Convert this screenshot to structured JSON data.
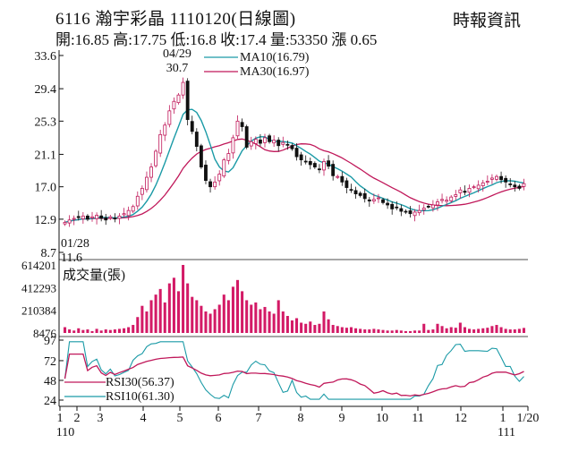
{
  "header": {
    "title": "6116  瀚宇彩晶 1110120(日線圖)",
    "source": "時報資訊",
    "stats": "開:16.85 高:17.75 低:16.8 收:17.4 量:53350 漲 0.65"
  },
  "chart_data": [
    {
      "type": "candlestick",
      "name": "price-panel",
      "y_ticks": [
        "33.6",
        "29.4",
        "25.3",
        "21.1",
        "17.0",
        "12.9",
        "8.7"
      ],
      "ylim": [
        8.7,
        33.6
      ],
      "legend": [
        {
          "label": "MA10(16.79)",
          "color": "#1a9aa6"
        },
        {
          "label": "MA30(16.97)",
          "color": "#c0185a"
        }
      ],
      "annotations": {
        "high_date": "04/29",
        "high_value": "30.7",
        "low_date": "01/28",
        "low_value": "11.6"
      },
      "close_path_approx": [
        12.5,
        12.8,
        13.0,
        13.1,
        13.3,
        12.9,
        13.2,
        13.4,
        13.0,
        12.8,
        13.2,
        13.0,
        13.3,
        13.6,
        14.0,
        14.5,
        15.8,
        16.8,
        18.2,
        19.5,
        21.5,
        23.6,
        24.8,
        26.6,
        27.8,
        28.6,
        30.2,
        25.5,
        24.0,
        22.1,
        19.5,
        17.8,
        17.0,
        17.6,
        18.6,
        20.4,
        21.2,
        23.2,
        25.3,
        24.6,
        22.0,
        22.7,
        23.0,
        22.5,
        23.2,
        22.7,
        22.9,
        22.2,
        22.6,
        22.3,
        21.8,
        20.8,
        20.4,
        20.2,
        19.8,
        19.5,
        19.2,
        20.2,
        19.6,
        18.4,
        18.3,
        17.6,
        16.9,
        16.6,
        16.1,
        15.9,
        15.5,
        15.2,
        15.4,
        15.6,
        15.0,
        14.7,
        14.2,
        14.4,
        13.9,
        13.8,
        13.6,
        13.8,
        14.0,
        14.3,
        14.5,
        14.7,
        15.1,
        15.4,
        15.3,
        15.7,
        16.0,
        16.6,
        16.3,
        16.8,
        17.0,
        17.2,
        17.5,
        17.7,
        18.1,
        18.3,
        17.9,
        17.6,
        17.3,
        17.0,
        16.8,
        17.4
      ]
    },
    {
      "type": "bar",
      "name": "volume-panel",
      "title": "成交量(張)",
      "y_ticks": [
        "614201",
        "412293",
        "210384",
        "8476"
      ],
      "ylim": [
        8476,
        614201
      ],
      "values_approx": [
        60000,
        40000,
        30000,
        50000,
        35000,
        40000,
        25000,
        45000,
        30000,
        40000,
        35000,
        40000,
        45000,
        50000,
        60000,
        80000,
        150000,
        250000,
        200000,
        300000,
        350000,
        400000,
        280000,
        450000,
        500000,
        380000,
        614201,
        450000,
        330000,
        300000,
        250000,
        200000,
        180000,
        220000,
        260000,
        350000,
        300000,
        420000,
        480000,
        380000,
        300000,
        260000,
        280000,
        220000,
        240000,
        200000,
        180000,
        300000,
        200000,
        160000,
        120000,
        140000,
        100000,
        90000,
        110000,
        80000,
        90000,
        200000,
        130000,
        80000,
        70000,
        60000,
        55000,
        60000,
        50000,
        45000,
        40000,
        40000,
        45000,
        40000,
        35000,
        30000,
        30000,
        35000,
        30000,
        25000,
        25000,
        30000,
        30000,
        90000,
        35000,
        40000,
        90000,
        70000,
        50000,
        60000,
        55000,
        100000,
        60000,
        45000,
        40000,
        45000,
        50000,
        55000,
        70000,
        80000,
        60000,
        45000,
        40000,
        40000,
        45000,
        53350
      ]
    },
    {
      "type": "line",
      "name": "rsi-panel",
      "y_ticks": [
        "97",
        "72",
        "48",
        "24"
      ],
      "ylim": [
        24,
        97
      ],
      "legend": [
        {
          "label": "RSI30(56.37)",
          "color": "#c0185a"
        },
        {
          "label": "RSI10(61.30)",
          "color": "#1a9aa6"
        }
      ]
    }
  ],
  "x_axis": {
    "tick_labels": [
      "1",
      "2",
      "3",
      "4",
      "5",
      "6",
      "7",
      "8",
      "9",
      "10",
      "11",
      "12",
      "1",
      "1/20"
    ],
    "year_labels": [
      "110",
      "111"
    ]
  },
  "colors": {
    "up_candle": "#c0185a",
    "down_candle": "#111111",
    "volume_bar": "#d31a66",
    "ma10": "#1a9aa6",
    "ma30": "#c0185a",
    "axis": "#111111"
  }
}
